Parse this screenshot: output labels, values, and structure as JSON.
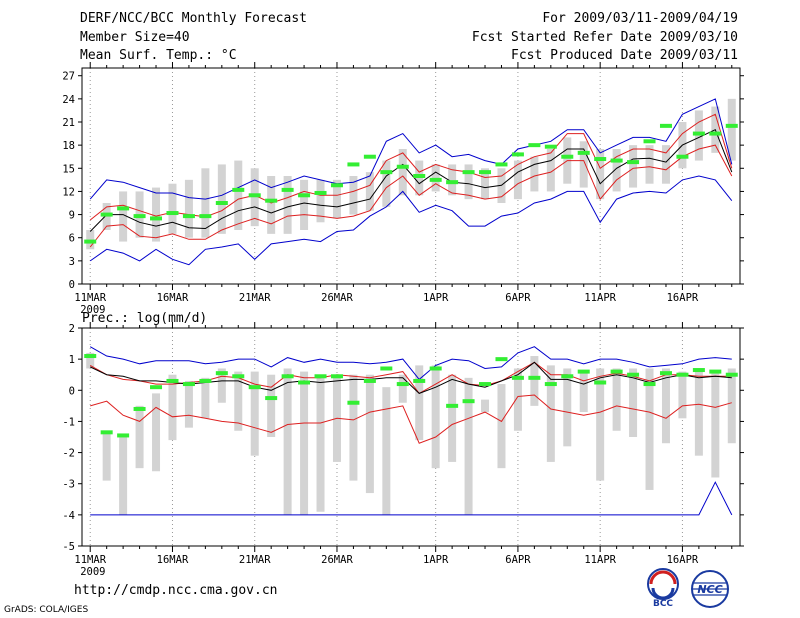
{
  "header": {
    "line1_left": "DERF/NCC/BCC Monthly Forecast",
    "line2_left": "Member Size=40",
    "line3_left": "Mean Surf. Temp.: °C",
    "line1_right": "For 2009/03/11-2009/04/19",
    "line2_right": "Fcst Started Refer Date 2009/03/10",
    "line3_right": "Fcst Produced Date 2009/03/11"
  },
  "footer": {
    "url": "http://cmdp.ncc.cma.gov.cn",
    "credit": "GrADS: COLA/IGES",
    "logo_bcc": "BCC",
    "logo_ncc": "NCC"
  },
  "colors": {
    "box": "#d3d3d3",
    "median": "#33ee33",
    "mean": "#000000",
    "std": "#dd2020",
    "extremes": "#0000cc"
  },
  "chart_data": [
    {
      "type": "ensemble-box",
      "title": "Mean Surf. Temp.: °C",
      "x_labels": [
        "11MAR",
        "16MAR",
        "21MAR",
        "26MAR",
        "1APR",
        "6APR",
        "11APR",
        "16APR"
      ],
      "x_label_days": [
        0,
        5,
        10,
        15,
        21,
        26,
        31,
        36
      ],
      "year_label": "2009",
      "ylim": [
        0,
        28
      ],
      "yticks": [
        0,
        3,
        6,
        9,
        12,
        15,
        18,
        21,
        24,
        27
      ],
      "days": 40,
      "series": [
        {
          "name": "max",
          "values": [
            11,
            13.5,
            13.2,
            12.5,
            11.8,
            11.8,
            11.2,
            11,
            11.5,
            12.5,
            13.5,
            12.5,
            13.2,
            14,
            13.5,
            13,
            13.2,
            14,
            18.5,
            19.5,
            17,
            18,
            16.5,
            16.8,
            16,
            15.5,
            17.5,
            18,
            18.5,
            20,
            20,
            17,
            18,
            19,
            19,
            18.5,
            22,
            23,
            24,
            15.5
          ]
        },
        {
          "name": "upper",
          "values": [
            8.3,
            10,
            10.2,
            9.5,
            8.8,
            9.3,
            9,
            8.7,
            9.5,
            11,
            11.5,
            10.5,
            11.2,
            12,
            11.5,
            11.5,
            12,
            12.8,
            16,
            17,
            14.5,
            15.5,
            14.8,
            14.5,
            13.8,
            14,
            15.5,
            16.5,
            17,
            19.5,
            19.5,
            15,
            16.5,
            17.5,
            17.5,
            17,
            19.5,
            21,
            22,
            15
          ]
        },
        {
          "name": "mean",
          "values": [
            6.8,
            9,
            9,
            8,
            7.5,
            8,
            7.3,
            7.2,
            8.5,
            9.5,
            10,
            9.2,
            10,
            10.5,
            10.2,
            10,
            10.5,
            11,
            14,
            15.5,
            13,
            14.5,
            13.2,
            13,
            12.5,
            12.8,
            14.5,
            15.5,
            16,
            17.5,
            17.5,
            13,
            15,
            16.2,
            16.3,
            15.8,
            18,
            19,
            20,
            14.5
          ]
        },
        {
          "name": "lower",
          "values": [
            4.8,
            7.5,
            7.7,
            6.2,
            6,
            6.5,
            5.8,
            5.8,
            7,
            7.8,
            8.5,
            7.8,
            8.8,
            9,
            8.8,
            8.5,
            8.8,
            9.5,
            12.5,
            14,
            11.5,
            13,
            11.8,
            11.5,
            11,
            11.3,
            13,
            14,
            14.5,
            16,
            16,
            11,
            13.5,
            15,
            15.2,
            14.8,
            16.5,
            17.5,
            18,
            14
          ]
        },
        {
          "name": "min",
          "values": [
            3,
            4.5,
            4,
            3,
            4.5,
            3.2,
            2.5,
            4.5,
            4.8,
            5.2,
            3.2,
            5.2,
            5.5,
            5.8,
            5.5,
            6.8,
            7,
            8.8,
            10,
            12,
            9.3,
            10.2,
            9.5,
            7.5,
            7.5,
            8.8,
            9.2,
            10.5,
            11,
            12,
            12,
            8,
            11,
            11.8,
            12,
            11.8,
            13.5,
            14,
            13.5,
            10.8
          ]
        },
        {
          "name": "box_high",
          "values": [
            7,
            10.5,
            12,
            12,
            12.5,
            13,
            13.5,
            15,
            15.5,
            16,
            15,
            14,
            14,
            13.5,
            13.5,
            13.5,
            14,
            14.5,
            16,
            17.5,
            16,
            15.5,
            15.5,
            15.5,
            15,
            15,
            16,
            16.5,
            17.5,
            19,
            18.5,
            17.5,
            17.5,
            18,
            18,
            18,
            21,
            22.5,
            23,
            24
          ]
        },
        {
          "name": "box_low",
          "values": [
            4.5,
            7,
            5.5,
            6,
            5.5,
            6.5,
            6,
            6,
            6.5,
            7,
            7.5,
            6.5,
            6.5,
            7,
            8,
            8.5,
            9,
            9.5,
            10,
            11.5,
            11.5,
            12,
            11.5,
            11,
            11,
            10.5,
            11,
            12,
            12,
            13,
            12.5,
            11,
            12,
            12.5,
            13,
            13,
            15,
            16,
            17,
            16
          ]
        },
        {
          "name": "median",
          "values": [
            5.5,
            9,
            9.8,
            8.8,
            8.5,
            9.2,
            8.8,
            8.8,
            10.5,
            12.2,
            11.5,
            10.8,
            12.2,
            11.5,
            11.8,
            12.8,
            15.5,
            16.5,
            14.5,
            15.2,
            14,
            13.5,
            13.2,
            14.5,
            14.5,
            15.5,
            16.8,
            18,
            17.8,
            16.5,
            17,
            16.2,
            16,
            15.8,
            18.5,
            20.5,
            16.5,
            19.5,
            19.5,
            20.5
          ]
        }
      ]
    },
    {
      "type": "ensemble-box",
      "title": "Prec.: log(mm/d)",
      "x_labels": [
        "11MAR",
        "16MAR",
        "21MAR",
        "26MAR",
        "1APR",
        "6APR",
        "11APR",
        "16APR"
      ],
      "x_label_days": [
        0,
        5,
        10,
        15,
        21,
        26,
        31,
        36
      ],
      "year_label": "2009",
      "ylim": [
        -5,
        2
      ],
      "yticks": [
        -5,
        -4,
        -3,
        -2,
        -1,
        0,
        1,
        2
      ],
      "days": 40,
      "series": [
        {
          "name": "max",
          "values": [
            1.4,
            1.1,
            1,
            0.85,
            0.95,
            0.95,
            0.95,
            0.85,
            0.9,
            1,
            1,
            0.75,
            1.05,
            0.9,
            1,
            0.9,
            0.9,
            0.85,
            0.9,
            1,
            0.35,
            0.8,
            1,
            0.95,
            0.7,
            0.75,
            1.2,
            1.4,
            1,
            1,
            0.85,
            1,
            1,
            0.9,
            0.75,
            0.8,
            0.85,
            1,
            1.05,
            1
          ]
        },
        {
          "name": "upper",
          "values": [
            0.8,
            0.5,
            0.35,
            0.3,
            0.2,
            0.2,
            0.25,
            0.3,
            0.45,
            0.4,
            0.2,
            0.1,
            0.5,
            0.4,
            0.4,
            0.5,
            0.45,
            0.4,
            0.5,
            0.6,
            -0.1,
            0.2,
            0.5,
            0.2,
            0.15,
            0.3,
            0.6,
            0.9,
            0.5,
            0.5,
            0.3,
            0.45,
            0.55,
            0.45,
            0.3,
            0.5,
            0.5,
            0.45,
            0.45,
            0.45
          ]
        },
        {
          "name": "mean",
          "values": [
            0.75,
            0.5,
            0.45,
            0.3,
            0.3,
            0.25,
            0.2,
            0.25,
            0.3,
            0.3,
            0.1,
            0,
            0.25,
            0.3,
            0.25,
            0.3,
            0.35,
            0.35,
            0.4,
            0.4,
            -0.1,
            0.1,
            0.35,
            0.2,
            0.1,
            0.3,
            0.5,
            0.9,
            0.35,
            0.35,
            0.2,
            0.4,
            0.5,
            0.4,
            0.25,
            0.4,
            0.5,
            0.4,
            0.45,
            0.4
          ]
        },
        {
          "name": "lower",
          "values": [
            -0.5,
            -0.35,
            -0.8,
            -1,
            -0.55,
            -0.85,
            -0.8,
            -0.9,
            -1,
            -1.05,
            -1.2,
            -1.35,
            -1.1,
            -1.05,
            -1.05,
            -0.9,
            -0.95,
            -0.7,
            -0.6,
            -0.5,
            -1.7,
            -1.5,
            -1.1,
            -0.9,
            -0.7,
            -1,
            -0.2,
            -0.15,
            -0.6,
            -0.7,
            -0.8,
            -0.7,
            -0.5,
            -0.6,
            -0.7,
            -0.9,
            -0.5,
            -0.45,
            -0.55,
            -0.4
          ]
        },
        {
          "name": "min",
          "values": [
            -4,
            -4,
            -4,
            -4,
            -4,
            -4,
            -4,
            -4,
            -4,
            -4,
            -4,
            -4,
            -4,
            -4,
            -4,
            -4,
            -4,
            -4,
            -4,
            -4,
            -4,
            -4,
            -4,
            -4,
            -4,
            -4,
            -4,
            -4,
            -4,
            -4,
            -4,
            -4,
            -4,
            -4,
            -4,
            -4,
            -4,
            -4,
            -2.95,
            -4
          ]
        },
        {
          "name": "box_high",
          "values": [
            1.2,
            -1.3,
            -1.4,
            -0.5,
            -0.1,
            0.5,
            0.3,
            0.4,
            0.7,
            0.6,
            0.6,
            0.5,
            0.7,
            0.6,
            0.5,
            0.5,
            0.5,
            0.5,
            0.1,
            0.5,
            0.8,
            0.8,
            0.5,
            0.4,
            -0.3,
            0.2,
            0.7,
            1.1,
            0.8,
            0.7,
            0.6,
            0.7,
            0.7,
            0.7,
            0.7,
            0.7,
            0.6,
            0.6,
            0.6,
            0.7
          ]
        },
        {
          "name": "box_low",
          "values": [
            0.7,
            -2.9,
            -4,
            -2.5,
            -2.6,
            -1.6,
            -1.2,
            -0.9,
            -0.4,
            -1.3,
            -2.1,
            -1.5,
            -4,
            -4,
            -3.9,
            -2.3,
            -2.9,
            -3.3,
            -4,
            -0.4,
            -1.6,
            -2.5,
            -2.3,
            -4,
            -0.7,
            -2.5,
            -1.3,
            -0.5,
            -2.3,
            -1.8,
            -0.7,
            -2.9,
            -1.3,
            -1.5,
            -3.2,
            -1.7,
            -0.9,
            -2.1,
            -2.8,
            -1.7
          ]
        },
        {
          "name": "median",
          "values": [
            1.1,
            -1.35,
            -1.45,
            -0.6,
            0.1,
            0.3,
            0.2,
            0.3,
            0.55,
            0.45,
            0.1,
            -0.25,
            0.45,
            0.25,
            0.45,
            0.45,
            -0.4,
            0.3,
            0.7,
            0.2,
            0.3,
            0.7,
            -0.5,
            -0.35,
            0.2,
            1,
            0.4,
            0.4,
            0.2,
            0.45,
            0.6,
            0.25,
            0.6,
            0.5,
            0.2,
            0.55,
            0.5,
            0.65,
            0.6,
            0.5
          ]
        }
      ]
    }
  ]
}
